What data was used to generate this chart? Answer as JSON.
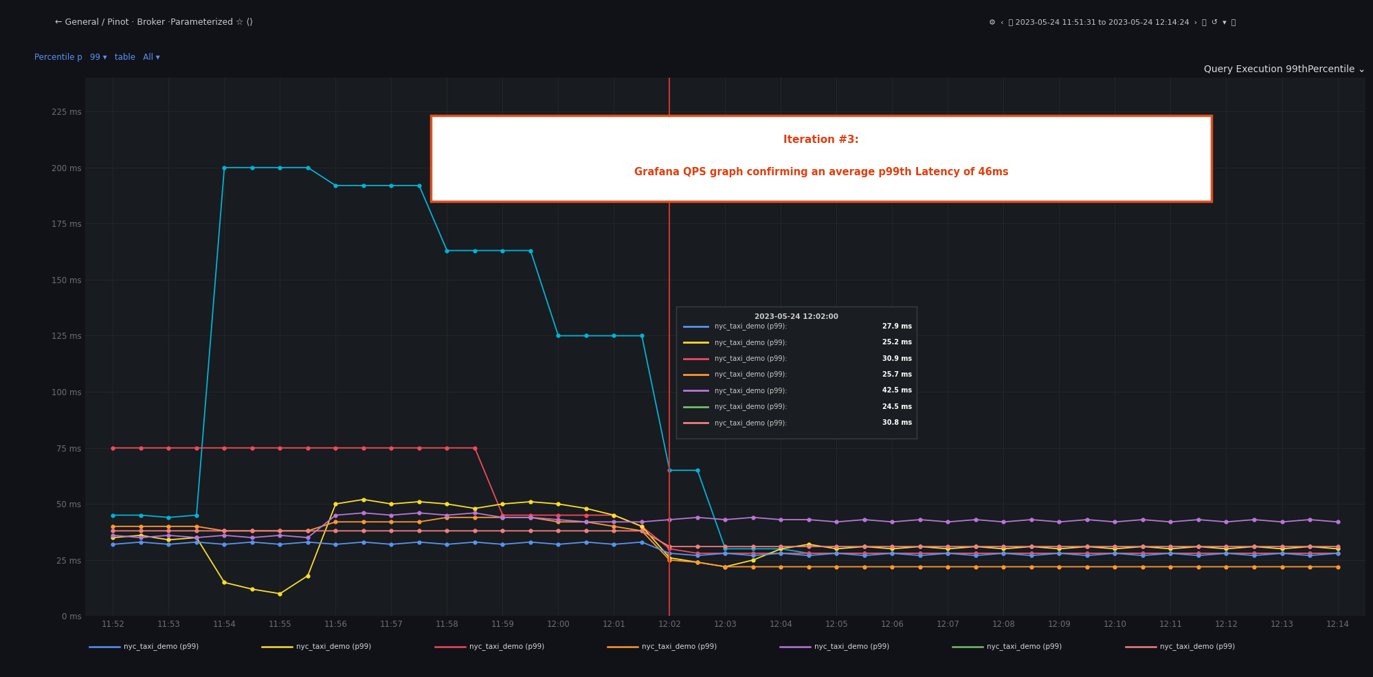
{
  "title": "Query Execution 99thPercentile ⌄",
  "annotation_title": "Iteration #3:",
  "annotation_body": "Grafana QPS graph confirming an average p99th Latency of 46ms",
  "bg_color": "#111217",
  "plot_bg": "#181b1f",
  "sidebar_color": "#111217",
  "topbar_color": "#111217",
  "grid_color": "#252525",
  "text_color": "#d8d9da",
  "ylabel_color": "#6e7077",
  "title_color": "#d8d9da",
  "ylim": [
    0,
    240
  ],
  "yticks": [
    0,
    25,
    50,
    75,
    100,
    125,
    150,
    175,
    200,
    225
  ],
  "ytick_labels": [
    "0 ms",
    "25 ms",
    "50 ms",
    "75 ms",
    "100 ms",
    "125 ms",
    "150 ms",
    "175 ms",
    "200 ms",
    "225 ms"
  ],
  "xtick_labels_full": [
    "11:52",
    "11:53",
    "11:54",
    "11:55",
    "11:56",
    "11:57",
    "11:58",
    "11:59",
    "12:00",
    "12:01",
    "12:02",
    "12:03",
    "12:04",
    "12:05",
    "12:06",
    "12:07",
    "12:08",
    "12:09",
    "12:10",
    "12:11",
    "12:12",
    "12:13",
    "12:14"
  ],
  "red_line_x": 120,
  "tooltip_time": "2023-05-24 12:02:00",
  "tooltip_entries": [
    {
      "color": "#5794f2",
      "label": "nyc_taxi_demo (p99):",
      "value": "27.9 ms"
    },
    {
      "color": "#fade2a",
      "label": "nyc_taxi_demo (p99):",
      "value": "25.2 ms"
    },
    {
      "color": "#f2495c",
      "label": "nyc_taxi_demo (p99):",
      "value": "30.9 ms"
    },
    {
      "color": "#ff9830",
      "label": "nyc_taxi_demo (p99):",
      "value": "25.7 ms"
    },
    {
      "color": "#b877d9",
      "label": "nyc_taxi_demo (p99):",
      "value": "42.5 ms"
    },
    {
      "color": "#73bf69",
      "label": "nyc_taxi_demo (p99):",
      "value": "24.5 ms"
    },
    {
      "color": "#f08080",
      "label": "nyc_taxi_demo (p99):",
      "value": "30.8 ms"
    }
  ],
  "series": [
    {
      "color": "#00b4d8",
      "name": "nyc_taxi_demo (p99)",
      "xs": [
        0,
        6,
        12,
        18,
        24,
        30,
        36,
        42,
        48,
        54,
        60,
        66,
        72,
        78,
        84,
        90,
        96,
        102,
        108,
        114,
        120,
        126,
        132,
        138,
        144,
        150,
        156,
        162,
        168,
        174,
        180,
        186,
        192,
        198,
        204,
        210,
        216,
        222,
        228,
        234,
        240,
        246,
        252,
        258,
        264
      ],
      "ys": [
        45,
        45,
        44,
        45,
        200,
        200,
        200,
        200,
        192,
        192,
        192,
        192,
        163,
        163,
        163,
        163,
        125,
        125,
        125,
        125,
        65,
        65,
        30,
        30,
        30,
        28,
        28,
        28,
        28,
        28,
        28,
        28,
        28,
        28,
        28,
        28,
        28,
        28,
        28,
        28,
        28,
        28,
        28,
        28,
        28
      ]
    },
    {
      "color": "#f2495c",
      "name": "nyc_taxi_demo (p99)",
      "xs": [
        0,
        6,
        12,
        18,
        24,
        30,
        36,
        42,
        48,
        54,
        60,
        66,
        72,
        78,
        84,
        90,
        96,
        102,
        108,
        114,
        120,
        126,
        132,
        138,
        144,
        150,
        156,
        162,
        168,
        174,
        180,
        186,
        192,
        198,
        204,
        210,
        216,
        222,
        228,
        234,
        240,
        246,
        252,
        258,
        264
      ],
      "ys": [
        75,
        75,
        75,
        75,
        75,
        75,
        75,
        75,
        75,
        75,
        75,
        75,
        75,
        75,
        45,
        45,
        45,
        45,
        45,
        40,
        30,
        28,
        28,
        28,
        28,
        28,
        28,
        28,
        28,
        28,
        28,
        28,
        28,
        28,
        28,
        28,
        28,
        28,
        28,
        28,
        28,
        28,
        28,
        28,
        28
      ]
    },
    {
      "color": "#fade2a",
      "name": "nyc_taxi_demo (p99)",
      "xs": [
        0,
        6,
        12,
        18,
        24,
        30,
        36,
        42,
        48,
        54,
        60,
        66,
        72,
        78,
        84,
        90,
        96,
        102,
        108,
        114,
        120,
        126,
        132,
        138,
        144,
        150,
        156,
        162,
        168,
        174,
        180,
        186,
        192,
        198,
        204,
        210,
        216,
        222,
        228,
        234,
        240,
        246,
        252,
        258,
        264
      ],
      "ys": [
        35,
        36,
        34,
        35,
        15,
        12,
        10,
        18,
        50,
        52,
        50,
        51,
        50,
        48,
        50,
        51,
        50,
        48,
        45,
        40,
        26,
        24,
        22,
        25,
        30,
        32,
        30,
        31,
        30,
        31,
        30,
        31,
        30,
        31,
        30,
        31,
        30,
        31,
        30,
        31,
        30,
        31,
        30,
        31,
        30
      ]
    },
    {
      "color": "#ff9830",
      "name": "nyc_taxi_demo (p99)",
      "xs": [
        0,
        6,
        12,
        18,
        24,
        30,
        36,
        42,
        48,
        54,
        60,
        66,
        72,
        78,
        84,
        90,
        96,
        102,
        108,
        114,
        120,
        126,
        132,
        138,
        144,
        150,
        156,
        162,
        168,
        174,
        180,
        186,
        192,
        198,
        204,
        210,
        216,
        222,
        228,
        234,
        240,
        246,
        252,
        258,
        264
      ],
      "ys": [
        40,
        40,
        40,
        40,
        38,
        38,
        38,
        38,
        42,
        42,
        42,
        42,
        44,
        44,
        44,
        44,
        42,
        42,
        40,
        38,
        25,
        24,
        22,
        22,
        22,
        22,
        22,
        22,
        22,
        22,
        22,
        22,
        22,
        22,
        22,
        22,
        22,
        22,
        22,
        22,
        22,
        22,
        22,
        22,
        22
      ]
    },
    {
      "color": "#b877d9",
      "name": "nyc_taxi_demo (p99)",
      "xs": [
        0,
        6,
        12,
        18,
        24,
        30,
        36,
        42,
        48,
        54,
        60,
        66,
        72,
        78,
        84,
        90,
        96,
        102,
        108,
        114,
        120,
        126,
        132,
        138,
        144,
        150,
        156,
        162,
        168,
        174,
        180,
        186,
        192,
        198,
        204,
        210,
        216,
        222,
        228,
        234,
        240,
        246,
        252,
        258,
        264
      ],
      "ys": [
        36,
        35,
        36,
        35,
        36,
        35,
        36,
        35,
        45,
        46,
        45,
        46,
        45,
        46,
        44,
        44,
        43,
        42,
        42,
        42,
        43,
        44,
        43,
        44,
        43,
        43,
        42,
        43,
        42,
        43,
        42,
        43,
        42,
        43,
        42,
        43,
        42,
        43,
        42,
        43,
        42,
        43,
        42,
        43,
        42
      ]
    },
    {
      "color": "#5794f2",
      "name": "nyc_taxi_demo (p99)",
      "xs": [
        0,
        6,
        12,
        18,
        24,
        30,
        36,
        42,
        48,
        54,
        60,
        66,
        72,
        78,
        84,
        90,
        96,
        102,
        108,
        114,
        120,
        126,
        132,
        138,
        144,
        150,
        156,
        162,
        168,
        174,
        180,
        186,
        192,
        198,
        204,
        210,
        216,
        222,
        228,
        234,
        240,
        246,
        252,
        258,
        264
      ],
      "ys": [
        32,
        33,
        32,
        33,
        32,
        33,
        32,
        33,
        32,
        33,
        32,
        33,
        32,
        33,
        32,
        33,
        32,
        33,
        32,
        33,
        28,
        27,
        28,
        27,
        28,
        27,
        28,
        27,
        28,
        27,
        28,
        27,
        28,
        27,
        28,
        27,
        28,
        27,
        28,
        27,
        28,
        27,
        28,
        27,
        28
      ]
    },
    {
      "color": "#f08080",
      "name": "nyc_taxi_demo (p99)",
      "xs": [
        0,
        6,
        12,
        18,
        24,
        30,
        36,
        42,
        48,
        54,
        60,
        66,
        72,
        78,
        84,
        90,
        96,
        102,
        108,
        114,
        120,
        126,
        132,
        138,
        144,
        150,
        156,
        162,
        168,
        174,
        180,
        186,
        192,
        198,
        204,
        210,
        216,
        222,
        228,
        234,
        240,
        246,
        252,
        258,
        264
      ],
      "ys": [
        38,
        38,
        38,
        38,
        38,
        38,
        38,
        38,
        38,
        38,
        38,
        38,
        38,
        38,
        38,
        38,
        38,
        38,
        38,
        38,
        31,
        31,
        31,
        31,
        31,
        31,
        31,
        31,
        31,
        31,
        31,
        31,
        31,
        31,
        31,
        31,
        31,
        31,
        31,
        31,
        31,
        31,
        31,
        31,
        31
      ]
    }
  ],
  "legend_colors": [
    "#5794f2",
    "#fade2a",
    "#f2495c",
    "#ff9830",
    "#b877d9",
    "#73bf69",
    "#f08080"
  ],
  "legend_labels": [
    "nyc_taxi_demo (p99)",
    "nyc_taxi_demo (p99)",
    "nyc_taxi_demo (p99)",
    "nyc_taxi_demo (p99)",
    "nyc_taxi_demo (p99)",
    "nyc_taxi_demo (p99)",
    "nyc_taxi_demo (p99)"
  ]
}
